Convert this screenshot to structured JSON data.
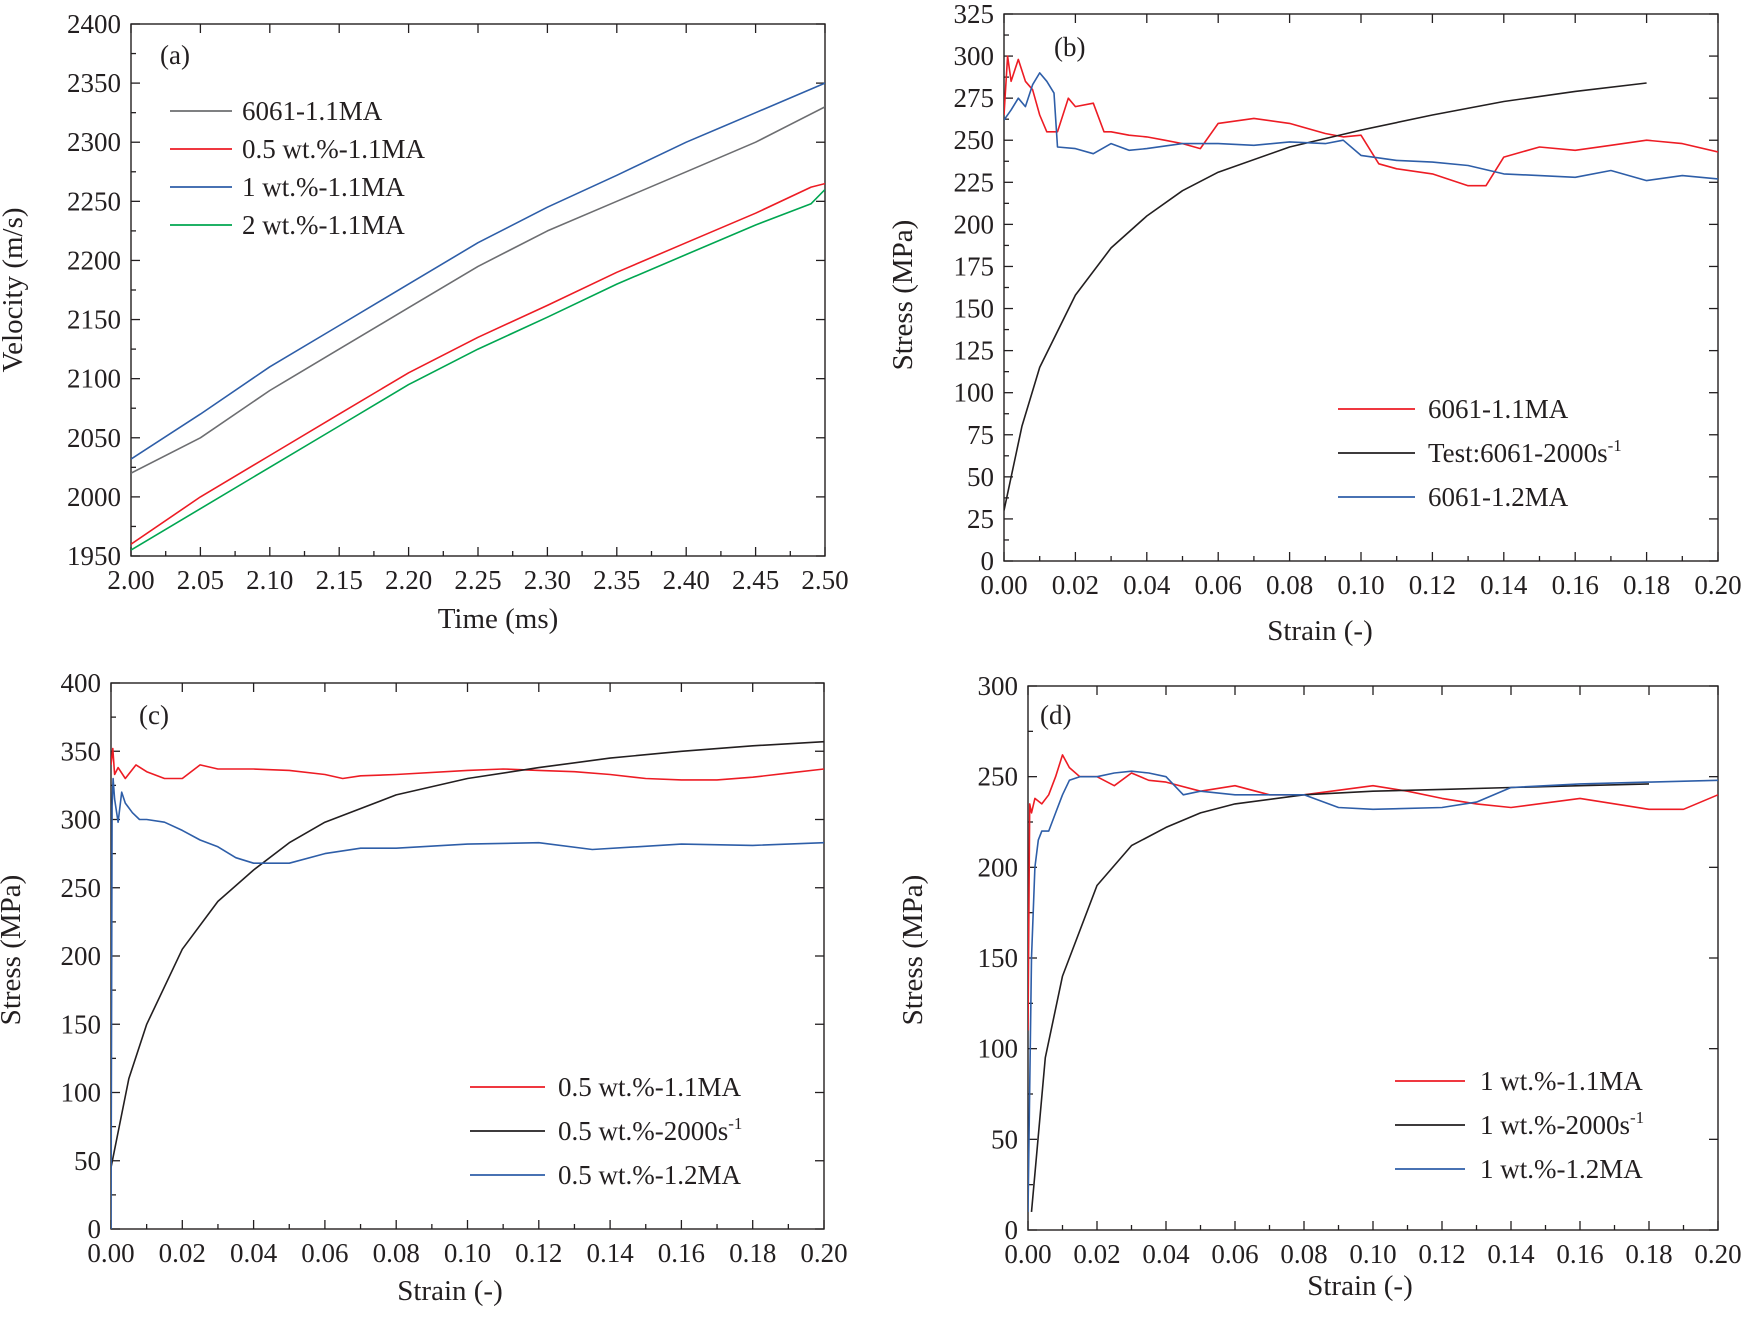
{
  "chart_data": [
    {
      "panel": "(a)",
      "type": "line",
      "xlabel": "Time (ms)",
      "ylabel": "Velocity (m/s)",
      "xlim": [
        2.0,
        2.5
      ],
      "ylim": [
        1950,
        2400
      ],
      "xticks": [
        "2.00",
        "2.05",
        "2.10",
        "2.15",
        "2.20",
        "2.25",
        "2.30",
        "2.35",
        "2.40",
        "2.45",
        "2.50"
      ],
      "yticks": [
        "1950",
        "2000",
        "2050",
        "2100",
        "2150",
        "2200",
        "2250",
        "2300",
        "2350",
        "2400"
      ],
      "legend_position": "top-left",
      "series": [
        {
          "name": "6061-1.1MA",
          "color": "#6d6e71",
          "x": [
            2.0,
            2.05,
            2.1,
            2.15,
            2.2,
            2.25,
            2.3,
            2.35,
            2.4,
            2.45,
            2.5
          ],
          "y": [
            2020,
            2050,
            2090,
            2125,
            2160,
            2195,
            2225,
            2250,
            2275,
            2300,
            2330
          ]
        },
        {
          "name": "0.5 wt.%-1.1MA",
          "color": "#ed1c24",
          "x": [
            2.0,
            2.05,
            2.1,
            2.15,
            2.2,
            2.25,
            2.3,
            2.35,
            2.4,
            2.45,
            2.49,
            2.5
          ],
          "y": [
            1960,
            2000,
            2035,
            2070,
            2105,
            2135,
            2162,
            2190,
            2215,
            2240,
            2262,
            2265
          ]
        },
        {
          "name": "1 wt.%-1.1MA",
          "color": "#2e5ea8",
          "x": [
            2.0,
            2.05,
            2.1,
            2.15,
            2.2,
            2.25,
            2.3,
            2.35,
            2.4,
            2.45,
            2.5
          ],
          "y": [
            2032,
            2070,
            2110,
            2145,
            2180,
            2215,
            2245,
            2272,
            2300,
            2325,
            2350
          ]
        },
        {
          "name": "2 wt.%-1.1MA",
          "color": "#00a651",
          "x": [
            2.0,
            2.05,
            2.1,
            2.15,
            2.2,
            2.25,
            2.3,
            2.35,
            2.4,
            2.45,
            2.49,
            2.5
          ],
          "y": [
            1955,
            1990,
            2025,
            2060,
            2095,
            2125,
            2152,
            2180,
            2205,
            2230,
            2248,
            2260
          ]
        }
      ]
    },
    {
      "panel": "(b)",
      "type": "line",
      "xlabel": "Strain (-)",
      "ylabel": "Stress (MPa)",
      "xlim": [
        0,
        0.2
      ],
      "ylim": [
        0,
        325
      ],
      "xticks": [
        "0.00",
        "0.02",
        "0.04",
        "0.06",
        "0.08",
        "0.10",
        "0.12",
        "0.14",
        "0.16",
        "0.18",
        "0.20"
      ],
      "yticks": [
        "0",
        "25",
        "50",
        "75",
        "100",
        "125",
        "150",
        "175",
        "200",
        "225",
        "250",
        "275",
        "300",
        "325"
      ],
      "legend_position": "bottom-right",
      "series": [
        {
          "name": "6061-1.1MA",
          "color": "#ed1c24",
          "x": [
            0,
            0.001,
            0.002,
            0.004,
            0.006,
            0.008,
            0.01,
            0.012,
            0.015,
            0.018,
            0.02,
            0.025,
            0.028,
            0.03,
            0.035,
            0.04,
            0.045,
            0.05,
            0.055,
            0.06,
            0.07,
            0.08,
            0.09,
            0.095,
            0.1,
            0.105,
            0.11,
            0.12,
            0.13,
            0.135,
            0.14,
            0.15,
            0.16,
            0.17,
            0.18,
            0.19,
            0.2
          ],
          "y": [
            265,
            300,
            285,
            298,
            285,
            280,
            265,
            255,
            255,
            275,
            270,
            272,
            255,
            255,
            253,
            252,
            250,
            248,
            245,
            260,
            263,
            260,
            254,
            252,
            253,
            236,
            233,
            230,
            223,
            223,
            240,
            246,
            244,
            247,
            250,
            248,
            243
          ]
        },
        {
          "name": "Test:6061-2000s⁻¹",
          "color": "#231f20",
          "x": [
            0,
            0.005,
            0.01,
            0.02,
            0.03,
            0.04,
            0.05,
            0.06,
            0.08,
            0.1,
            0.12,
            0.14,
            0.16,
            0.18
          ],
          "y": [
            30,
            80,
            115,
            158,
            186,
            205,
            220,
            231,
            246,
            256,
            265,
            273,
            279,
            284
          ]
        },
        {
          "name": "6061-1.2MA",
          "color": "#2e5ea8",
          "x": [
            0,
            0.002,
            0.004,
            0.006,
            0.008,
            0.01,
            0.012,
            0.014,
            0.015,
            0.02,
            0.025,
            0.03,
            0.035,
            0.04,
            0.05,
            0.06,
            0.07,
            0.08,
            0.09,
            0.095,
            0.1,
            0.11,
            0.12,
            0.13,
            0.14,
            0.15,
            0.16,
            0.17,
            0.18,
            0.19,
            0.2
          ],
          "y": [
            262,
            268,
            275,
            270,
            283,
            290,
            285,
            278,
            246,
            245,
            242,
            248,
            244,
            245,
            248,
            248,
            247,
            249,
            248,
            250,
            241,
            238,
            237,
            235,
            230,
            229,
            228,
            232,
            226,
            229,
            227
          ]
        }
      ]
    },
    {
      "panel": "(c)",
      "type": "line",
      "xlabel": "Strain (-)",
      "ylabel": "Stress (MPa)",
      "xlim": [
        0,
        0.2
      ],
      "ylim": [
        0,
        400
      ],
      "xticks": [
        "0.00",
        "0.02",
        "0.04",
        "0.06",
        "0.08",
        "0.10",
        "0.12",
        "0.14",
        "0.16",
        "0.18",
        "0.20"
      ],
      "yticks": [
        "0",
        "50",
        "100",
        "150",
        "200",
        "250",
        "300",
        "350",
        "400"
      ],
      "legend_position": "bottom-right",
      "series": [
        {
          "name": "0.5 wt.%-1.1MA",
          "color": "#ed1c24",
          "x": [
            0,
            0.0005,
            0.001,
            0.002,
            0.004,
            0.007,
            0.01,
            0.015,
            0.02,
            0.025,
            0.03,
            0.04,
            0.05,
            0.06,
            0.065,
            0.07,
            0.08,
            0.1,
            0.11,
            0.12,
            0.13,
            0.14,
            0.15,
            0.16,
            0.17,
            0.18,
            0.19,
            0.2
          ],
          "y": [
            340,
            352,
            333,
            338,
            330,
            340,
            335,
            330,
            330,
            340,
            337,
            337,
            336,
            333,
            330,
            332,
            333,
            336,
            337,
            336,
            335,
            333,
            330,
            329,
            329,
            331,
            334,
            337
          ]
        },
        {
          "name": "0.5 wt.%-2000s⁻¹",
          "color": "#231f20",
          "x": [
            0,
            0.005,
            0.01,
            0.02,
            0.03,
            0.04,
            0.05,
            0.06,
            0.08,
            0.1,
            0.12,
            0.14,
            0.16,
            0.18,
            0.2
          ],
          "y": [
            45,
            110,
            150,
            205,
            240,
            263,
            283,
            298,
            318,
            330,
            338,
            345,
            350,
            354,
            357
          ]
        },
        {
          "name": "0.5 wt.%-1.2MA",
          "color": "#2e5ea8",
          "x": [
            0,
            0.0003,
            0.0006,
            0.001,
            0.002,
            0.003,
            0.004,
            0.006,
            0.008,
            0.01,
            0.015,
            0.02,
            0.025,
            0.03,
            0.035,
            0.04,
            0.045,
            0.05,
            0.06,
            0.07,
            0.08,
            0.1,
            0.12,
            0.135,
            0.16,
            0.18,
            0.2
          ],
          "y": [
            0,
            310,
            330,
            315,
            298,
            320,
            312,
            305,
            300,
            300,
            298,
            292,
            285,
            280,
            272,
            268,
            268,
            268,
            275,
            279,
            279,
            282,
            283,
            278,
            282,
            281,
            283
          ]
        }
      ]
    },
    {
      "panel": "(d)",
      "type": "line",
      "xlabel": "Strain (-)",
      "ylabel": "Stress (MPa)",
      "xlim": [
        0,
        0.2
      ],
      "ylim": [
        0,
        300
      ],
      "xticks": [
        "0.00",
        "0.02",
        "0.04",
        "0.06",
        "0.08",
        "0.10",
        "0.12",
        "0.14",
        "0.16",
        "0.18",
        "0.20"
      ],
      "yticks": [
        "0",
        "50",
        "100",
        "150",
        "200",
        "250",
        "300"
      ],
      "legend_position": "bottom-right",
      "series": [
        {
          "name": "1 wt.%-1.1MA",
          "color": "#ed1c24",
          "x": [
            0,
            0.0005,
            0.001,
            0.002,
            0.004,
            0.006,
            0.008,
            0.01,
            0.012,
            0.015,
            0.02,
            0.025,
            0.03,
            0.035,
            0.04,
            0.05,
            0.06,
            0.07,
            0.08,
            0.1,
            0.11,
            0.12,
            0.13,
            0.14,
            0.16,
            0.18,
            0.19,
            0.2
          ],
          "y": [
            110,
            235,
            230,
            238,
            235,
            240,
            250,
            262,
            255,
            250,
            250,
            245,
            252,
            248,
            247,
            242,
            245,
            240,
            240,
            245,
            242,
            238,
            235,
            233,
            238,
            232,
            232,
            240
          ]
        },
        {
          "name": "1 wt.%-2000s⁻¹",
          "color": "#231f20",
          "x": [
            0.001,
            0.005,
            0.01,
            0.02,
            0.03,
            0.04,
            0.05,
            0.06,
            0.08,
            0.1,
            0.12,
            0.14,
            0.16,
            0.18
          ],
          "y": [
            10,
            95,
            140,
            190,
            212,
            222,
            230,
            235,
            240,
            242,
            243,
            244,
            245,
            246
          ]
        },
        {
          "name": "1 wt.%-1.2MA",
          "color": "#2e5ea8",
          "x": [
            0,
            0.001,
            0.002,
            0.003,
            0.004,
            0.006,
            0.008,
            0.01,
            0.012,
            0.015,
            0.02,
            0.025,
            0.03,
            0.035,
            0.04,
            0.045,
            0.05,
            0.06,
            0.07,
            0.08,
            0.09,
            0.1,
            0.12,
            0.13,
            0.14,
            0.16,
            0.18,
            0.2
          ],
          "y": [
            10,
            150,
            200,
            215,
            220,
            220,
            230,
            240,
            248,
            250,
            250,
            252,
            253,
            252,
            250,
            240,
            242,
            240,
            240,
            240,
            233,
            232,
            233,
            236,
            244,
            246,
            247,
            248
          ]
        }
      ]
    }
  ]
}
